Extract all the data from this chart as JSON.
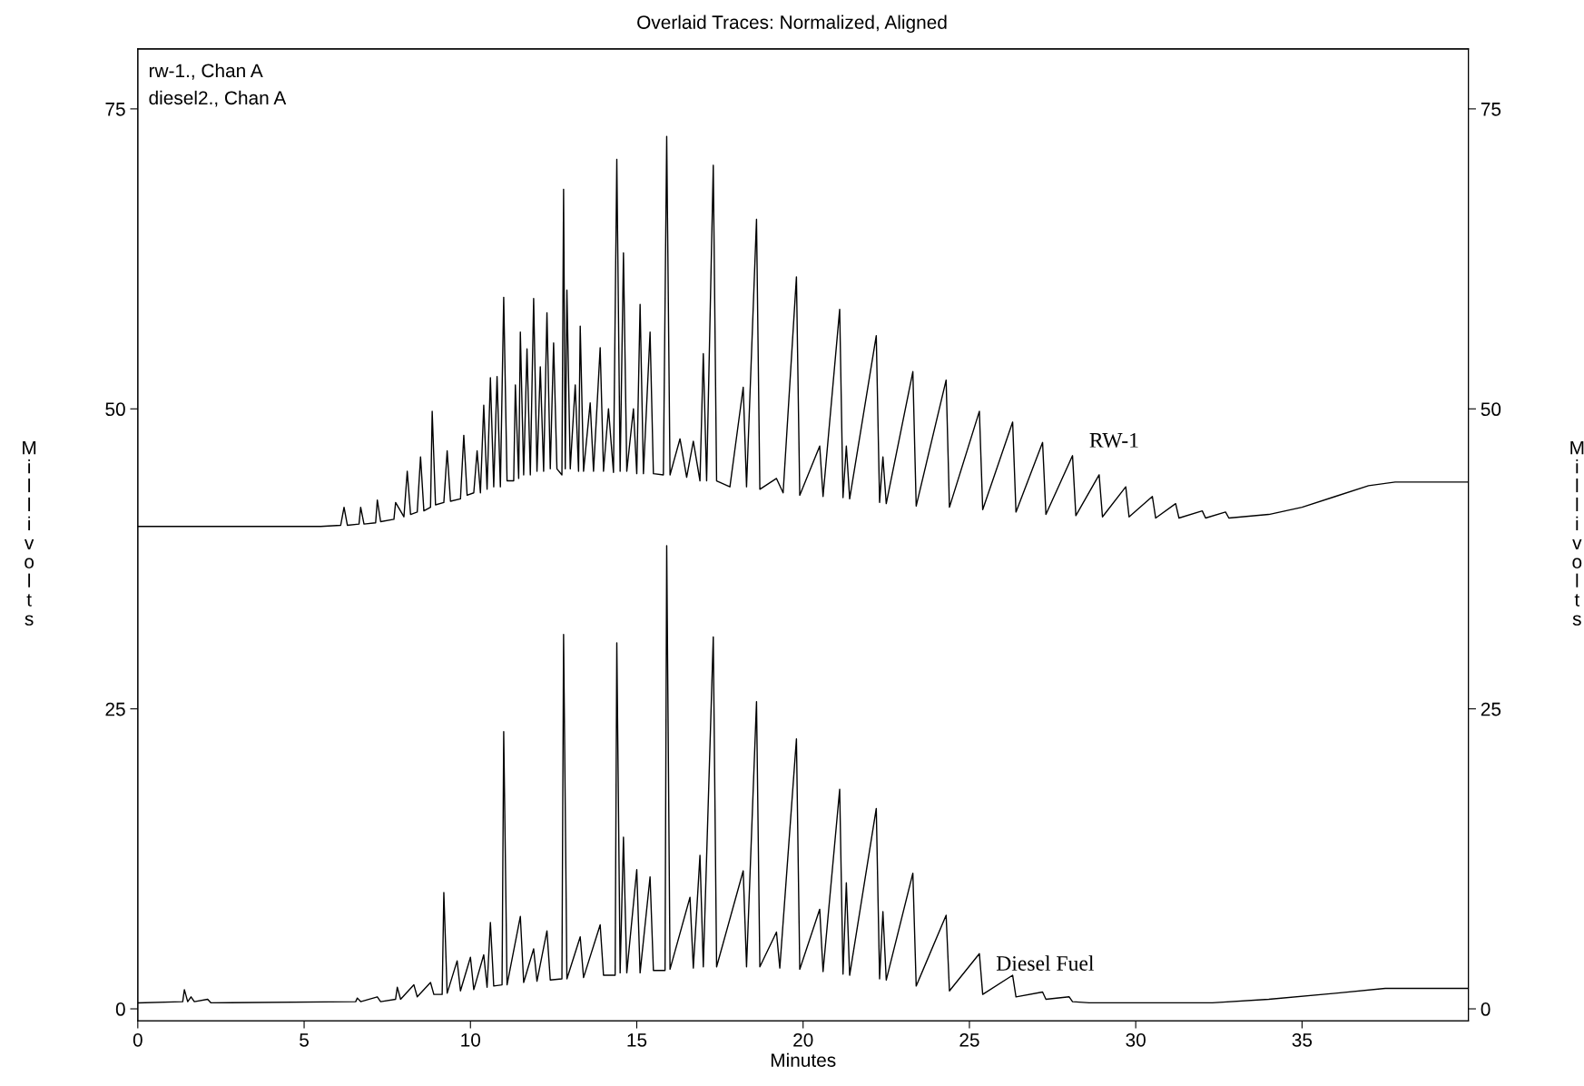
{
  "chart_data": {
    "type": "line",
    "title": "Overlaid Traces: Normalized, Aligned",
    "xlabel": "Minutes",
    "ylabel": "Millivolts",
    "y2label": "Millivolts",
    "annotations": [
      "rw-1., Chan A",
      "diesel2., Chan A"
    ],
    "xlim": [
      0,
      40
    ],
    "xticks": [
      0,
      5,
      10,
      15,
      20,
      25,
      30,
      35
    ],
    "ylim": [
      -1,
      80
    ],
    "yticks": [
      0,
      25,
      50,
      75
    ],
    "y2lim": [
      -1,
      80
    ],
    "y2ticks": [
      0,
      25,
      50,
      75
    ],
    "grid": false,
    "legend": false,
    "marker": "none",
    "line_style": "solid",
    "series": [
      {
        "name": "RW-1",
        "color": "#000000",
        "x": [
          0,
          5.5,
          6.1,
          6.2,
          6.3,
          6.65,
          6.7,
          6.8,
          7.15,
          7.2,
          7.3,
          7.7,
          7.75,
          8.0,
          8.1,
          8.2,
          8.4,
          8.5,
          8.6,
          8.8,
          8.85,
          8.95,
          9.2,
          9.3,
          9.4,
          9.7,
          9.8,
          9.9,
          10.1,
          10.2,
          10.3,
          10.4,
          10.5,
          10.6,
          10.7,
          10.8,
          10.9,
          11.0,
          11.1,
          11.3,
          11.35,
          11.45,
          11.5,
          11.6,
          11.7,
          11.8,
          11.9,
          12.0,
          12.1,
          12.2,
          12.3,
          12.4,
          12.5,
          12.6,
          12.75,
          12.8,
          12.85,
          12.9,
          13.0,
          13.15,
          13.25,
          13.3,
          13.4,
          13.6,
          13.7,
          13.9,
          14.0,
          14.15,
          14.3,
          14.4,
          14.5,
          14.6,
          14.7,
          14.9,
          15.0,
          15.1,
          15.2,
          15.4,
          15.5,
          15.8,
          15.9,
          16.0,
          16.3,
          16.5,
          16.7,
          16.9,
          17.0,
          17.1,
          17.3,
          17.4,
          17.8,
          18.2,
          18.3,
          18.6,
          18.7,
          19.2,
          19.4,
          19.8,
          19.9,
          20.5,
          20.6,
          21.1,
          21.2,
          21.3,
          21.4,
          22.2,
          22.3,
          22.4,
          22.5,
          23.3,
          23.4,
          24.3,
          24.4,
          25.3,
          25.4,
          26.3,
          26.4,
          27.2,
          27.3,
          28.1,
          28.2,
          28.9,
          29.0,
          29.7,
          29.8,
          30.5,
          30.6,
          31.2,
          31.3,
          32.0,
          32.1,
          32.7,
          32.8,
          34.0,
          35.0,
          36.0,
          37.0,
          37.8,
          40.0
        ],
        "values": [
          40.2,
          40.2,
          40.3,
          41.8,
          40.3,
          40.4,
          41.8,
          40.4,
          40.5,
          42.4,
          40.6,
          40.8,
          42.2,
          41.0,
          44.8,
          41.2,
          41.4,
          46.0,
          41.5,
          41.8,
          49.8,
          42.0,
          42.2,
          46.5,
          42.3,
          42.5,
          47.8,
          42.8,
          43.0,
          46.5,
          43.0,
          50.3,
          43.3,
          52.6,
          43.5,
          52.7,
          43.5,
          59.3,
          44.0,
          44.0,
          52.0,
          44.2,
          56.4,
          44.5,
          55.0,
          44.5,
          59.2,
          44.8,
          53.5,
          44.8,
          58.0,
          45.0,
          55.5,
          45.0,
          44.5,
          68.3,
          45.0,
          59.9,
          45.0,
          52.0,
          44.8,
          56.9,
          44.8,
          50.5,
          44.8,
          55.1,
          44.8,
          50.0,
          44.7,
          70.8,
          44.8,
          63.0,
          44.8,
          50.0,
          44.6,
          58.7,
          44.6,
          56.4,
          44.6,
          44.5,
          72.7,
          44.5,
          47.5,
          44.3,
          47.3,
          44.0,
          54.6,
          44.0,
          70.3,
          44.0,
          43.5,
          51.8,
          43.5,
          65.8,
          43.3,
          44.2,
          43.0,
          61.0,
          42.8,
          46.9,
          42.7,
          58.3,
          42.6,
          46.9,
          42.5,
          56.1,
          42.2,
          46.0,
          42.1,
          53.1,
          41.9,
          52.4,
          41.8,
          49.8,
          41.6,
          48.9,
          41.4,
          47.2,
          41.2,
          46.1,
          41.1,
          44.5,
          41.0,
          43.5,
          41.0,
          42.7,
          40.9,
          42.1,
          40.9,
          41.5,
          40.9,
          41.4,
          40.9,
          41.2,
          41.8,
          42.7,
          43.6,
          43.9,
          43.9
        ]
      },
      {
        "name": "Diesel Fuel",
        "color": "#000000",
        "x": [
          0,
          1.35,
          1.4,
          1.5,
          1.6,
          1.7,
          2.1,
          2.2,
          6.55,
          6.6,
          6.7,
          7.2,
          7.3,
          7.75,
          7.8,
          7.9,
          8.3,
          8.4,
          8.8,
          8.9,
          9.15,
          9.2,
          9.3,
          9.6,
          9.7,
          10.0,
          10.1,
          10.4,
          10.5,
          10.6,
          10.7,
          10.95,
          11.0,
          11.1,
          11.5,
          11.6,
          11.9,
          12.0,
          12.3,
          12.4,
          12.75,
          12.8,
          12.9,
          13.3,
          13.4,
          13.9,
          14.0,
          14.35,
          14.4,
          14.5,
          14.6,
          14.7,
          15.0,
          15.1,
          15.4,
          15.5,
          15.85,
          15.9,
          16.0,
          16.6,
          16.7,
          16.9,
          17.0,
          17.3,
          17.4,
          18.2,
          18.3,
          18.6,
          18.7,
          19.2,
          19.3,
          19.8,
          19.9,
          20.5,
          20.6,
          21.1,
          21.2,
          21.3,
          21.4,
          22.2,
          22.3,
          22.4,
          22.5,
          23.3,
          23.4,
          24.3,
          24.4,
          25.3,
          25.4,
          26.3,
          26.4,
          27.2,
          27.3,
          28.0,
          28.1,
          28.6,
          32.3,
          34.0,
          36.0,
          37.5,
          40.0
        ],
        "values": [
          0.5,
          0.6,
          1.6,
          0.6,
          1.0,
          0.6,
          0.8,
          0.5,
          0.6,
          0.9,
          0.6,
          1.0,
          0.6,
          0.8,
          1.8,
          0.8,
          2.0,
          1.0,
          2.2,
          1.2,
          1.2,
          9.7,
          1.3,
          4.0,
          1.5,
          4.3,
          1.6,
          4.5,
          1.8,
          7.2,
          1.9,
          2.0,
          23.1,
          2.0,
          7.7,
          2.2,
          5.0,
          2.3,
          6.5,
          2.4,
          2.5,
          31.2,
          2.5,
          6.0,
          2.6,
          7.0,
          2.8,
          2.8,
          30.5,
          3.0,
          14.3,
          3.0,
          11.6,
          3.0,
          11.0,
          3.2,
          3.2,
          38.6,
          3.3,
          9.3,
          3.4,
          12.8,
          3.5,
          31.0,
          3.5,
          11.5,
          3.5,
          25.6,
          3.5,
          6.4,
          3.4,
          22.5,
          3.3,
          8.3,
          3.1,
          18.3,
          2.9,
          10.5,
          2.8,
          16.7,
          2.5,
          8.1,
          2.4,
          11.3,
          1.9,
          7.8,
          1.5,
          4.6,
          1.2,
          2.8,
          1.0,
          1.4,
          0.8,
          1.0,
          0.6,
          0.5,
          0.5,
          0.8,
          1.3,
          1.7,
          1.7
        ]
      }
    ]
  }
}
